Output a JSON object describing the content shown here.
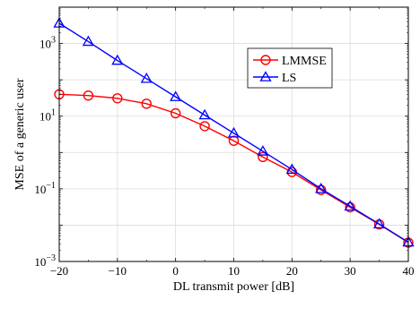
{
  "chart_data": {
    "type": "line",
    "xlabel": "DL transmit power [dB]",
    "ylabel": "MSE of a generic user",
    "xlim": [
      -20,
      40
    ],
    "ylim": [
      0.001,
      10000
    ],
    "yscale": "log",
    "grid": true,
    "legend_position": "top-right",
    "x_ticks": [
      -20,
      -10,
      0,
      10,
      20,
      30,
      40
    ],
    "x_tick_labels": [
      "−20",
      "−10",
      "0",
      "10",
      "20",
      "30",
      "40"
    ],
    "y_ticks": [
      0.001,
      0.1,
      10,
      1000
    ],
    "y_tick_labels": [
      {
        "base": "10",
        "exp": "−3"
      },
      {
        "base": "10",
        "exp": "−1"
      },
      {
        "base": "10",
        "exp": "1"
      },
      {
        "base": "10",
        "exp": "3"
      }
    ],
    "series": [
      {
        "name": "LMMSE",
        "color": "#ff0000",
        "marker": "circle",
        "x": [
          -20,
          -15,
          -10,
          -5,
          0,
          5,
          10,
          15,
          20,
          25,
          30,
          35,
          40
        ],
        "y": [
          40,
          37,
          31,
          22,
          12,
          5.3,
          2.1,
          0.75,
          0.29,
          0.093,
          0.031,
          0.0105,
          0.0033
        ]
      },
      {
        "name": "LS",
        "color": "#0000ff",
        "marker": "triangle",
        "x": [
          -20,
          -15,
          -10,
          -5,
          0,
          5,
          10,
          15,
          20,
          25,
          30,
          35,
          40
        ],
        "y": [
          3600,
          1130,
          340,
          108,
          34,
          10.7,
          3.4,
          1.08,
          0.34,
          0.1,
          0.033,
          0.0107,
          0.0034
        ]
      }
    ]
  }
}
